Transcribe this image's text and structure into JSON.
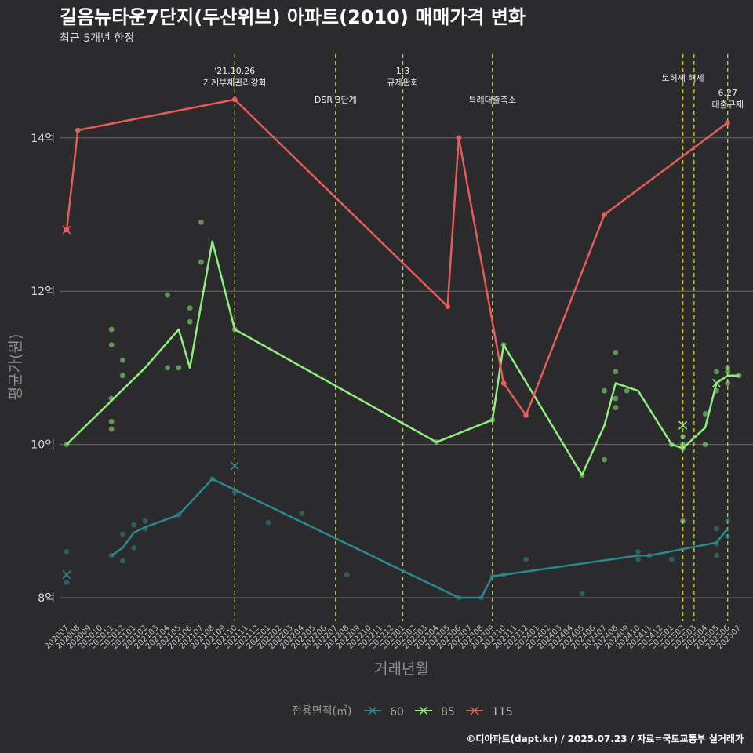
{
  "chart_data": {
    "type": "line",
    "title": "길음뉴타운7단지(두산위브) 아파트(2010) 매매가격 변화",
    "subtitle": "최근 5개년 한정",
    "xlabel": "거래년월",
    "ylabel": "평균가(원)",
    "ylim": [
      7.7,
      15.5
    ],
    "y_ticks": [
      {
        "value": 8,
        "label": "8억"
      },
      {
        "value": 10,
        "label": "10억"
      },
      {
        "value": 12,
        "label": "12억"
      },
      {
        "value": 14,
        "label": "14억"
      }
    ],
    "grid": "horizontal",
    "categories": [
      "202007",
      "202008",
      "202009",
      "202010",
      "202011",
      "202012",
      "202101",
      "202102",
      "202103",
      "202104",
      "202105",
      "202106",
      "202107",
      "202108",
      "202109",
      "202110",
      "202111",
      "202112",
      "202201",
      "202202",
      "202203",
      "202204",
      "202205",
      "202206",
      "202207",
      "202208",
      "202209",
      "202210",
      "202211",
      "202212",
      "202301",
      "202302",
      "202303",
      "202304",
      "202305",
      "202306",
      "202307",
      "202308",
      "202309",
      "202310",
      "202311",
      "202312",
      "202401",
      "202402",
      "202403",
      "202404",
      "202405",
      "202406",
      "202407",
      "202408",
      "202409",
      "202410",
      "202411",
      "202412",
      "202501",
      "202502",
      "202503",
      "202504",
      "202505",
      "202506",
      "202507"
    ],
    "events": [
      {
        "month": "202110",
        "lines": [
          "'21.10.26",
          "가계부채관리강화"
        ],
        "row": 0
      },
      {
        "month": "202207",
        "lines": [
          "DSR 3단계"
        ],
        "row": 2
      },
      {
        "month": "202301",
        "lines": [
          "1.3",
          "규제완화"
        ],
        "row": 0
      },
      {
        "month": "202309",
        "lines": [
          "특례대출축소"
        ],
        "row": 2
      },
      {
        "month": "202502",
        "lines": [
          "토허제 해제"
        ],
        "row": 1
      },
      {
        "month": "202503",
        "lines": [],
        "row": 1
      },
      {
        "month": "202506",
        "lines": [
          "6.27",
          "대출규제"
        ],
        "row": 3
      }
    ],
    "series": [
      {
        "name": "60",
        "color": "#2b8a8f",
        "line": [
          [
            "202011",
            8.55
          ],
          [
            "202012",
            8.65
          ],
          [
            "202101",
            8.85
          ],
          [
            "202102",
            8.92
          ],
          [
            "202105",
            9.08
          ],
          [
            "202108",
            9.55
          ],
          [
            "202306",
            8.0
          ],
          [
            "202308",
            8.0
          ],
          [
            "202309",
            8.28
          ],
          [
            "202310",
            8.3
          ],
          [
            "202410",
            8.55
          ],
          [
            "202411",
            8.55
          ],
          [
            "202505",
            8.72
          ],
          [
            "202506",
            8.9
          ]
        ],
        "points": [
          [
            "202007",
            8.6
          ],
          [
            "202007",
            8.2
          ],
          [
            "202011",
            8.55
          ],
          [
            "202012",
            8.48
          ],
          [
            "202012",
            8.83
          ],
          [
            "202101",
            8.65
          ],
          [
            "202101",
            8.95
          ],
          [
            "202102",
            8.9
          ],
          [
            "202102",
            9.0
          ],
          [
            "202105",
            9.08
          ],
          [
            "202108",
            9.55
          ],
          [
            "202110",
            9.38
          ],
          [
            "202201",
            8.98
          ],
          [
            "202204",
            9.1
          ],
          [
            "202208",
            8.3
          ],
          [
            "202306",
            8.0
          ],
          [
            "202308",
            8.0
          ],
          [
            "202309",
            8.28
          ],
          [
            "202310",
            8.3
          ],
          [
            "202312",
            8.5
          ],
          [
            "202405",
            8.05
          ],
          [
            "202410",
            8.6
          ],
          [
            "202410",
            8.5
          ],
          [
            "202411",
            8.55
          ],
          [
            "202501",
            8.5
          ],
          [
            "202505",
            8.9
          ],
          [
            "202505",
            8.55
          ],
          [
            "202505",
            8.7
          ],
          [
            "202506",
            9.0
          ],
          [
            "202506",
            8.8
          ]
        ],
        "crosses": [
          [
            "202007",
            8.3
          ],
          [
            "202110",
            9.72
          ]
        ]
      },
      {
        "name": "85",
        "color": "#90ee7e",
        "line": [
          [
            "202007",
            10.0
          ],
          [
            "202102",
            11.0
          ],
          [
            "202105",
            11.5
          ],
          [
            "202106",
            11.0
          ],
          [
            "202108",
            12.65
          ],
          [
            "202110",
            11.5
          ],
          [
            "202304",
            10.03
          ],
          [
            "202309",
            10.32
          ],
          [
            "202310",
            11.3
          ],
          [
            "202405",
            9.6
          ],
          [
            "202407",
            10.25
          ],
          [
            "202408",
            10.8
          ],
          [
            "202410",
            10.7
          ],
          [
            "202501",
            10.0
          ],
          [
            "202502",
            9.95
          ],
          [
            "202504",
            10.22
          ],
          [
            "202505",
            10.8
          ],
          [
            "202506",
            10.9
          ],
          [
            "202507",
            10.9
          ]
        ],
        "points": [
          [
            "202007",
            10.0
          ],
          [
            "202011",
            11.5
          ],
          [
            "202011",
            11.3
          ],
          [
            "202011",
            10.6
          ],
          [
            "202011",
            10.3
          ],
          [
            "202011",
            10.2
          ],
          [
            "202012",
            11.1
          ],
          [
            "202012",
            10.9
          ],
          [
            "202104",
            11.95
          ],
          [
            "202104",
            11.0
          ],
          [
            "202105",
            11.0
          ],
          [
            "202106",
            11.78
          ],
          [
            "202106",
            11.6
          ],
          [
            "202107",
            12.9
          ],
          [
            "202107",
            12.38
          ],
          [
            "202110",
            11.5
          ],
          [
            "202304",
            10.03
          ],
          [
            "202309",
            10.32
          ],
          [
            "202310",
            11.3
          ],
          [
            "202405",
            9.6
          ],
          [
            "202407",
            10.7
          ],
          [
            "202407",
            9.8
          ],
          [
            "202408",
            11.2
          ],
          [
            "202408",
            10.95
          ],
          [
            "202408",
            10.6
          ],
          [
            "202408",
            10.48
          ],
          [
            "202409",
            10.7
          ],
          [
            "202501",
            10.0
          ],
          [
            "202502",
            10.1
          ],
          [
            "202502",
            10.0
          ],
          [
            "202502",
            9.95
          ],
          [
            "202502",
            9.0
          ],
          [
            "202504",
            10.4
          ],
          [
            "202504",
            10.0
          ],
          [
            "202505",
            10.95
          ],
          [
            "202505",
            10.7
          ],
          [
            "202506",
            11.0
          ],
          [
            "202506",
            10.95
          ],
          [
            "202506",
            10.8
          ],
          [
            "202507",
            10.9
          ]
        ],
        "crosses": [
          [
            "202502",
            10.25
          ],
          [
            "202505",
            10.8
          ]
        ]
      },
      {
        "name": "115",
        "color": "#e55c5c",
        "line": [
          [
            "202007",
            12.8
          ],
          [
            "202008",
            14.1
          ],
          [
            "202110",
            14.5
          ],
          [
            "202305",
            11.8
          ],
          [
            "202306",
            14.0
          ],
          [
            "202310",
            10.8
          ],
          [
            "202312",
            10.38
          ],
          [
            "202407",
            13.0
          ],
          [
            "202506",
            14.2
          ]
        ],
        "points": [
          [
            "202007",
            12.8
          ],
          [
            "202008",
            14.1
          ],
          [
            "202110",
            14.5
          ],
          [
            "202305",
            11.8
          ],
          [
            "202306",
            14.0
          ],
          [
            "202310",
            10.8
          ],
          [
            "202312",
            10.38
          ],
          [
            "202407",
            13.0
          ],
          [
            "202506",
            14.2
          ]
        ],
        "crosses": [
          [
            "202007",
            12.8
          ]
        ]
      }
    ],
    "legend": {
      "title": "전용면적(㎡)",
      "position": "bottom"
    }
  },
  "caption": "©디아파트(dapt.kr) / 2025.07.23 / 자료=국토교통부 실거래가"
}
